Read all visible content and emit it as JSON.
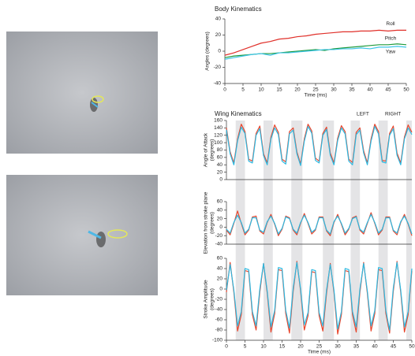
{
  "chart_data": [
    {
      "type": "line",
      "title": "Body Kinematics",
      "xlabel": "Time (ms)",
      "ylabel": "Angles (degrees)",
      "x": [
        0,
        2.5,
        5,
        7.5,
        10,
        12.5,
        15,
        17.5,
        20,
        22.5,
        25,
        27.5,
        30,
        32.5,
        35,
        37.5,
        40,
        42.5,
        45,
        47.5,
        50
      ],
      "xlim": [
        0,
        50
      ],
      "xticks": [
        0,
        5,
        10,
        15,
        20,
        25,
        30,
        35,
        40,
        45,
        50
      ],
      "ylim": [
        -40,
        40
      ],
      "yticks": [
        -40,
        -20,
        0,
        20,
        40
      ],
      "series": [
        {
          "name": "Roll",
          "color": "#e0302a",
          "values": [
            -5,
            -2,
            2,
            6,
            10,
            12,
            15,
            16,
            18,
            19,
            21,
            22,
            23,
            24,
            24,
            25,
            25,
            26,
            25,
            26,
            26
          ]
        },
        {
          "name": "Pitch",
          "color": "#1e9a3c",
          "values": [
            -8,
            -6,
            -5,
            -4,
            -3,
            -3,
            -2,
            -1,
            0,
            1,
            2,
            1,
            3,
            4,
            5,
            6,
            7,
            8,
            8,
            9,
            8
          ]
        },
        {
          "name": "Yaw",
          "color": "#3cc4e8",
          "values": [
            -10,
            -8,
            -6,
            -4,
            -3,
            -5,
            -2,
            -2,
            -1,
            0,
            1,
            2,
            2,
            3,
            3,
            4,
            3,
            5,
            5,
            6,
            5
          ]
        }
      ]
    },
    {
      "type": "line",
      "title": "Wing Kinematics",
      "ylabel": [
        "Angle of Attack",
        "(degrees)"
      ],
      "x": [
        0,
        1,
        2,
        3,
        4,
        5,
        6,
        7,
        8,
        9,
        10,
        11,
        12,
        13,
        14,
        15,
        16,
        17,
        18,
        19,
        20,
        21,
        22,
        23,
        24,
        25,
        26,
        27,
        28,
        29,
        30,
        31,
        32,
        33,
        34,
        35,
        36,
        37,
        38,
        39,
        40,
        41,
        42,
        43,
        44,
        45,
        46,
        47,
        48,
        49,
        50
      ],
      "xlim": [
        0,
        50
      ],
      "ylim": [
        0,
        160
      ],
      "yticks": [
        0,
        20,
        40,
        60,
        80,
        100,
        120,
        140,
        160
      ],
      "series": [
        {
          "name": "LEFT",
          "color": "#e8452c",
          "values": [
            140,
            75,
            45,
            110,
            150,
            130,
            55,
            50,
            125,
            145,
            70,
            45,
            115,
            148,
            128,
            55,
            48,
            130,
            140,
            75,
            42,
            110,
            150,
            132,
            58,
            50,
            125,
            142,
            72,
            45,
            112,
            146,
            130,
            55,
            46,
            128,
            140,
            78,
            45,
            110,
            150,
            130,
            52,
            50,
            125,
            145,
            72,
            45,
            115,
            148,
            128
          ]
        },
        {
          "name": "RIGHT",
          "color": "#2cb8e0",
          "values": [
            135,
            70,
            40,
            105,
            142,
            125,
            50,
            45,
            120,
            138,
            65,
            40,
            110,
            140,
            122,
            50,
            42,
            124,
            134,
            70,
            38,
            104,
            144,
            126,
            52,
            45,
            120,
            136,
            66,
            40,
            106,
            140,
            124,
            50,
            40,
            122,
            134,
            72,
            40,
            104,
            144,
            124,
            48,
            45,
            120,
            138,
            66,
            40,
            110,
            140,
            122
          ]
        }
      ]
    },
    {
      "type": "line",
      "ylabel": [
        "Elevation from stroke plane",
        "(degrees)"
      ],
      "x": [
        0,
        1,
        2,
        3,
        4,
        5,
        6,
        7,
        8,
        9,
        10,
        11,
        12,
        13,
        14,
        15,
        16,
        17,
        18,
        19,
        20,
        21,
        22,
        23,
        24,
        25,
        26,
        27,
        28,
        29,
        30,
        31,
        32,
        33,
        34,
        35,
        36,
        37,
        38,
        39,
        40,
        41,
        42,
        43,
        44,
        45,
        46,
        47,
        48,
        49,
        50
      ],
      "xlim": [
        0,
        50
      ],
      "ylim": [
        -40,
        60
      ],
      "yticks": [
        -40,
        -20,
        0,
        20,
        40,
        60
      ],
      "series": [
        {
          "color": "#e8452c",
          "values": [
            -7,
            -18,
            9,
            38,
            9,
            -18,
            -7,
            24,
            26,
            -9,
            -16,
            11,
            30,
            7,
            -20,
            -5,
            26,
            22,
            -7,
            -18,
            9,
            32,
            9,
            -16,
            -7,
            24,
            24,
            -9,
            -20,
            11,
            30,
            7,
            -18,
            -5,
            22,
            26,
            -7,
            -16,
            9,
            34,
            9,
            -18,
            -7,
            24,
            24,
            -9,
            -18,
            11,
            30,
            7,
            -20
          ]
        },
        {
          "color": "#2cb8e0",
          "values": [
            -5,
            -14,
            11,
            28,
            11,
            -14,
            -5,
            22,
            22,
            -7,
            -12,
            13,
            26,
            9,
            -16,
            -3,
            24,
            20,
            -5,
            -14,
            11,
            28,
            11,
            -12,
            -5,
            22,
            22,
            -7,
            -16,
            13,
            26,
            9,
            -14,
            -3,
            20,
            24,
            -5,
            -12,
            11,
            30,
            11,
            -14,
            -5,
            22,
            22,
            -7,
            -14,
            13,
            26,
            9,
            -16
          ]
        }
      ]
    },
    {
      "type": "line",
      "ylabel": [
        "Stroke Amplitude",
        "(degrees)"
      ],
      "xlabel": "Time (ms)",
      "x": [
        0,
        1,
        2,
        3,
        4,
        5,
        6,
        7,
        8,
        9,
        10,
        11,
        12,
        13,
        14,
        15,
        16,
        17,
        18,
        19,
        20,
        21,
        22,
        23,
        24,
        25,
        26,
        27,
        28,
        29,
        30,
        31,
        32,
        33,
        34,
        35,
        36,
        37,
        38,
        39,
        40,
        41,
        42,
        43,
        44,
        45,
        46,
        47,
        48,
        49,
        50
      ],
      "xlim": [
        0,
        50
      ],
      "xticks": [
        0,
        5,
        10,
        15,
        20,
        25,
        30,
        35,
        40,
        45,
        50
      ],
      "ylim": [
        -100,
        60
      ],
      "yticks": [
        -100,
        -80,
        -60,
        -40,
        -20,
        0,
        20,
        40,
        60
      ],
      "bands": [
        [
          2.5,
          5
        ],
        [
          10,
          12.5
        ],
        [
          17.5,
          20.5
        ],
        [
          26,
          29
        ],
        [
          33.5,
          36
        ],
        [
          41,
          43.5
        ],
        [
          48.5,
          50
        ]
      ],
      "series": [
        {
          "color": "#e8452c",
          "values": [
            -6,
            52,
            -6,
            -82,
            -50,
            36,
            34,
            -50,
            -80,
            -6,
            50,
            -8,
            -84,
            -48,
            38,
            36,
            -48,
            -86,
            -4,
            54,
            -4,
            -80,
            -52,
            34,
            32,
            -52,
            -82,
            -8,
            50,
            -6,
            -88,
            -50,
            36,
            34,
            -50,
            -84,
            -6,
            52,
            -8,
            -82,
            -48,
            38,
            36,
            -48,
            -86,
            -4,
            54,
            -6,
            -84,
            -50,
            36
          ]
        },
        {
          "color": "#2cb8e0",
          "values": [
            -2,
            48,
            -2,
            -72,
            -44,
            40,
            38,
            -44,
            -72,
            0,
            50,
            -4,
            -74,
            -42,
            42,
            40,
            -42,
            -76,
            2,
            52,
            0,
            -70,
            -46,
            38,
            36,
            -46,
            -72,
            -2,
            48,
            -2,
            -78,
            -44,
            40,
            38,
            -44,
            -74,
            0,
            50,
            -4,
            -72,
            -42,
            42,
            40,
            -42,
            -80,
            2,
            52,
            -2,
            -74,
            -44,
            40
          ]
        }
      ]
    }
  ]
}
